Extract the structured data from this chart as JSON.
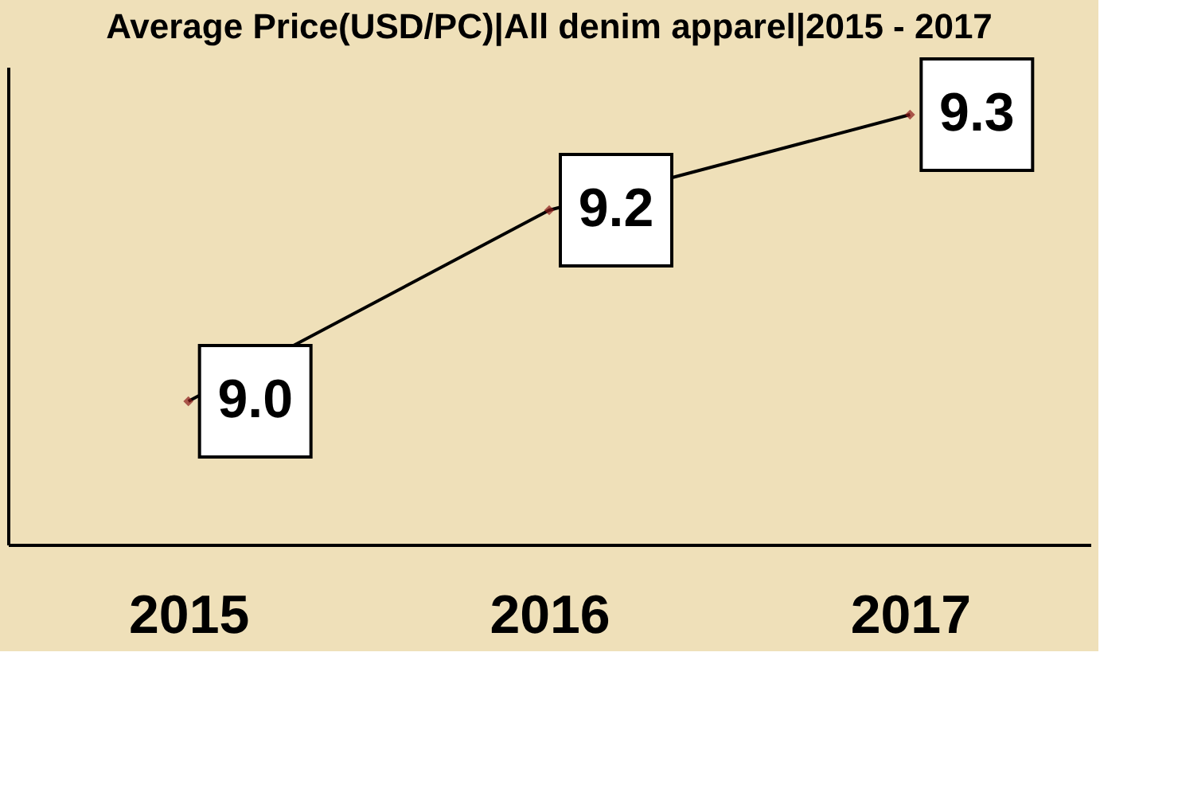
{
  "chart_data": {
    "type": "line",
    "title": "Average Price(USD/PC)|All denim apparel|2015 - 2017",
    "categories": [
      "2015",
      "2016",
      "2017"
    ],
    "series": [
      {
        "color": "#000000",
        "values": [
          9.0,
          9.2,
          9.3
        ],
        "value_labels": [
          "9.0",
          "9.2",
          "9.3"
        ]
      }
    ],
    "ylim": [
      8.85,
      9.35
    ],
    "marker": "diamond",
    "grid": false,
    "legend": false
  }
}
